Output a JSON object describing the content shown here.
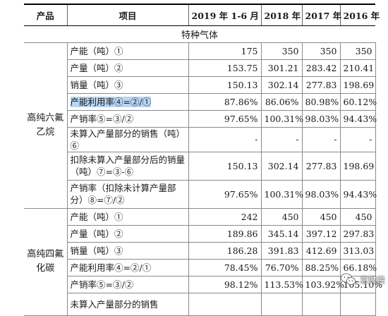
{
  "table": {
    "headers": [
      "产品",
      "项目",
      "2019 年 1-6 月",
      "2018 年",
      "2017 年",
      "2016 年"
    ],
    "section_title": "特种气体",
    "products": [
      {
        "name": "高纯六氟乙烷",
        "rows": [
          {
            "item": "产能（吨）①",
            "values": [
              "175",
              "350",
              "350",
              "350"
            ],
            "highlight": false
          },
          {
            "item": "产量（吨）②",
            "values": [
              "153.75",
              "301.21",
              "283.42",
              "210.41"
            ],
            "highlight": false
          },
          {
            "item": "销量（吨）③",
            "values": [
              "150.13",
              "302.14",
              "277.83",
              "198.69"
            ],
            "highlight": false
          },
          {
            "item": "产能利用率④=②/①",
            "values": [
              "87.86%",
              "86.06%",
              "80.98%",
              "60.12%"
            ],
            "highlight": true
          },
          {
            "item": "产销率⑤=③/②",
            "values": [
              "97.65%",
              "100.31%",
              "98.03%",
              "94.43%"
            ],
            "highlight": false
          },
          {
            "item": "未算入产量部分的销售（吨）⑥",
            "values": [
              "-",
              "-",
              "-",
              "-"
            ],
            "highlight": false
          },
          {
            "item": "扣除未算入产量部分后的销量（吨）⑦=③-⑥",
            "values": [
              "150.13",
              "302.14",
              "277.83",
              "198.69"
            ],
            "highlight": false
          },
          {
            "item": "产销率（扣除未计算产量部分）⑧=⑦/②",
            "values": [
              "97.65%",
              "100.31%",
              "98.03%",
              "94.43%"
            ],
            "highlight": false
          }
        ]
      },
      {
        "name": "高纯四氟化碳",
        "rows": [
          {
            "item": "产能（吨）①",
            "values": [
              "242",
              "450",
              "450",
              "450"
            ],
            "highlight": false
          },
          {
            "item": "产量（吨）②",
            "values": [
              "189.86",
              "345.14",
              "397.12",
              "297.83"
            ],
            "highlight": false
          },
          {
            "item": "销量（吨）③",
            "values": [
              "186.28",
              "391.83",
              "412.69",
              "313.03"
            ],
            "highlight": false
          },
          {
            "item": "产能利用率④=②/①",
            "values": [
              "78.45%",
              "76.70%",
              "88.25%",
              "66.18%"
            ],
            "highlight": false
          },
          {
            "item": "产销率⑤=③/②",
            "values": [
              "98.12%",
              "113.53%",
              "103.92%",
              "105.10%"
            ],
            "highlight": false
          },
          {
            "item": "未算入产量部分的销售",
            "values": [
              "",
              "",
              "",
              ""
            ],
            "highlight": false
          }
        ]
      }
    ]
  },
  "watermark": {
    "icon": "wechat-icon",
    "text": "念财经"
  }
}
